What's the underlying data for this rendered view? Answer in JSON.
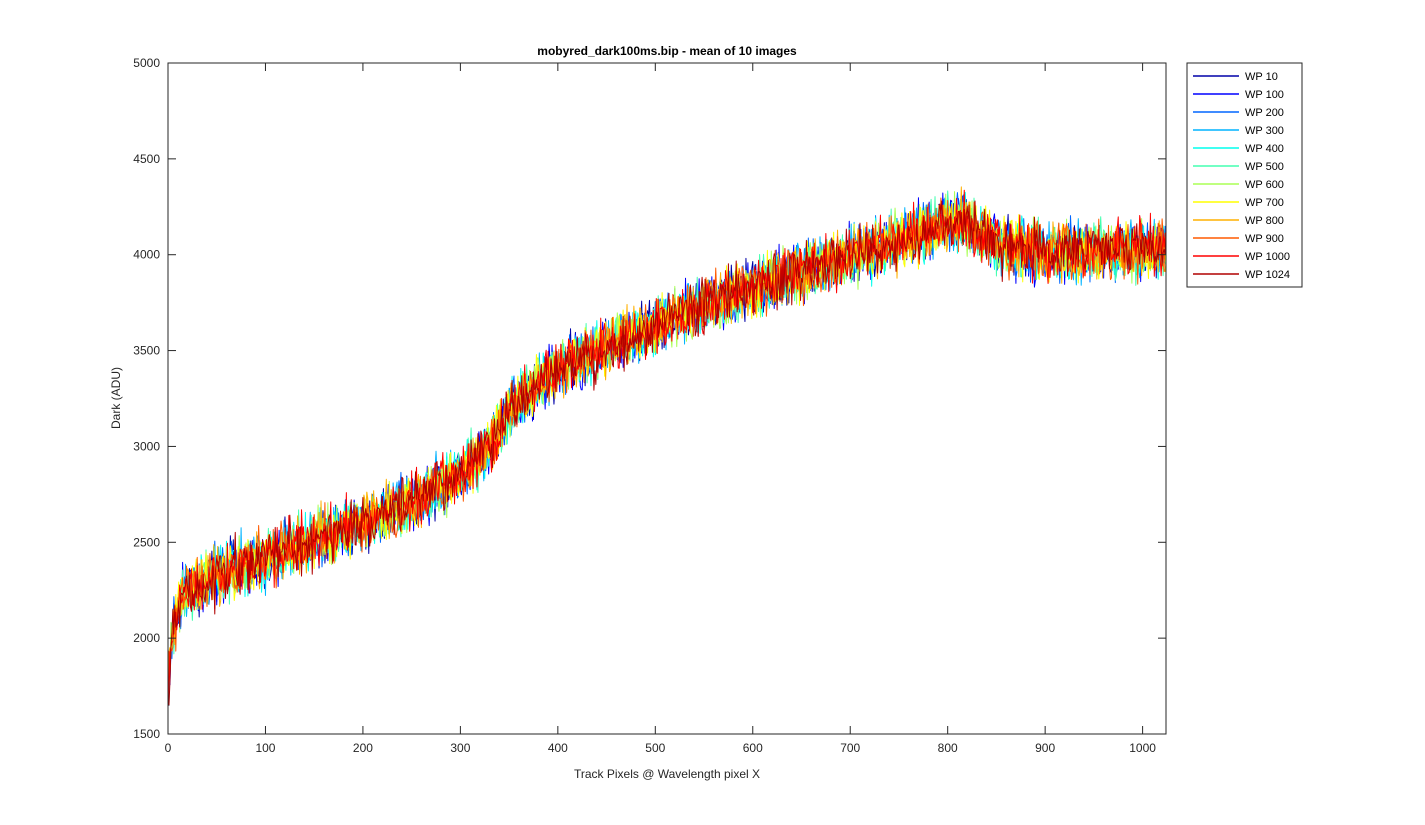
{
  "chart_data": {
    "type": "line",
    "title": "mobyred_dark100ms.bip - mean of 10 images",
    "xlabel": "Track Pixels @ Wavelength pixel X",
    "ylabel": "Dark (ADU)",
    "xlim": [
      0,
      1024
    ],
    "ylim": [
      1500,
      5000
    ],
    "xticks": [
      0,
      100,
      200,
      300,
      400,
      500,
      600,
      700,
      800,
      900,
      1000
    ],
    "yticks": [
      1500,
      2000,
      2500,
      3000,
      3500,
      4000,
      4500,
      5000
    ],
    "grid": false,
    "legend_position": "outside-top-right",
    "trend": {
      "x": [
        0,
        5,
        15,
        50,
        100,
        150,
        200,
        250,
        300,
        330,
        350,
        380,
        400,
        450,
        500,
        550,
        600,
        650,
        700,
        750,
        800,
        820,
        850,
        900,
        950,
        1000,
        1024
      ],
      "y": [
        1750,
        2050,
        2220,
        2330,
        2420,
        2510,
        2600,
        2710,
        2860,
        3000,
        3180,
        3330,
        3390,
        3520,
        3630,
        3740,
        3830,
        3910,
        3990,
        4070,
        4170,
        4170,
        4060,
        4010,
        4020,
        4030,
        4030
      ]
    },
    "noise_amplitude": 140,
    "series": [
      {
        "name": "WP 10",
        "color": "#0000a8"
      },
      {
        "name": "WP 100",
        "color": "#0000ff"
      },
      {
        "name": "WP 200",
        "color": "#0066ff"
      },
      {
        "name": "WP 300",
        "color": "#00b4ff"
      },
      {
        "name": "WP 400",
        "color": "#00ffee"
      },
      {
        "name": "WP 500",
        "color": "#44ffb0"
      },
      {
        "name": "WP 600",
        "color": "#aaff55"
      },
      {
        "name": "WP 700",
        "color": "#ffff00"
      },
      {
        "name": "WP 800",
        "color": "#ffb000"
      },
      {
        "name": "WP 900",
        "color": "#ff5a00"
      },
      {
        "name": "WP 1000",
        "color": "#ff0000"
      },
      {
        "name": "WP 1024",
        "color": "#b00000"
      }
    ]
  }
}
